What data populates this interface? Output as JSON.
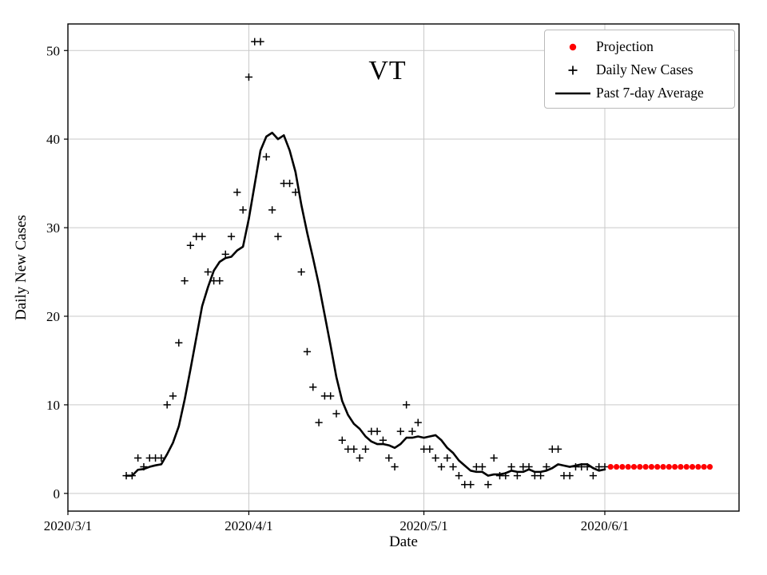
{
  "chart_data": {
    "type": "scatter+line",
    "title": "VT",
    "xlabel": "Date",
    "ylabel": "Daily New Cases",
    "grid": true,
    "legend_position": "upper right",
    "x_axis": {
      "tick_labels": [
        "2020/3/1",
        "2020/4/1",
        "2020/5/1",
        "2020/6/1"
      ],
      "tick_days": [
        0,
        31,
        61,
        92
      ],
      "xlim_days": [
        0,
        115
      ]
    },
    "y_axis": {
      "ticks": [
        0,
        10,
        20,
        30,
        40,
        50
      ],
      "ylim": [
        -2,
        53
      ]
    },
    "series": [
      {
        "name": "Daily New Cases",
        "marker": "plus",
        "color": "#000000",
        "start_day": 10,
        "start_date": "2020/3/11",
        "values": [
          2,
          2,
          4,
          3,
          4,
          4,
          4,
          10,
          11,
          17,
          24,
          28,
          29,
          29,
          25,
          24,
          24,
          27,
          29,
          34,
          32,
          47,
          51,
          51,
          38,
          32,
          29,
          35,
          35,
          34,
          25,
          16,
          12,
          8,
          11,
          11,
          9,
          6,
          5,
          5,
          4,
          5,
          7,
          7,
          6,
          4,
          3,
          7,
          10,
          7,
          8,
          5,
          5,
          4,
          3,
          4,
          3,
          2,
          1,
          1,
          3,
          3,
          1,
          4,
          2,
          2,
          3,
          2,
          3,
          3,
          2,
          2,
          3,
          5,
          5,
          2,
          2,
          3,
          3,
          3,
          2,
          3,
          3
        ]
      },
      {
        "name": "Past 7-day Average",
        "style": "line",
        "color": "#000000",
        "derived_from": "Daily New Cases",
        "window": 7
      },
      {
        "name": "Projection",
        "marker": "dot",
        "color": "#ff0000",
        "start_day": 93,
        "start_date": "2020/6/2",
        "values": [
          3,
          3,
          3,
          3,
          3,
          3,
          3,
          3,
          3,
          3,
          3,
          3,
          3,
          3,
          3,
          3,
          3,
          3
        ]
      }
    ]
  },
  "legend": {
    "items": [
      {
        "label": "Projection",
        "marker": "dot",
        "color": "#ff0000"
      },
      {
        "label": "Daily New Cases",
        "marker": "plus",
        "color": "#000000"
      },
      {
        "label": "Past 7-day Average",
        "marker": "line",
        "color": "#000000"
      }
    ]
  }
}
